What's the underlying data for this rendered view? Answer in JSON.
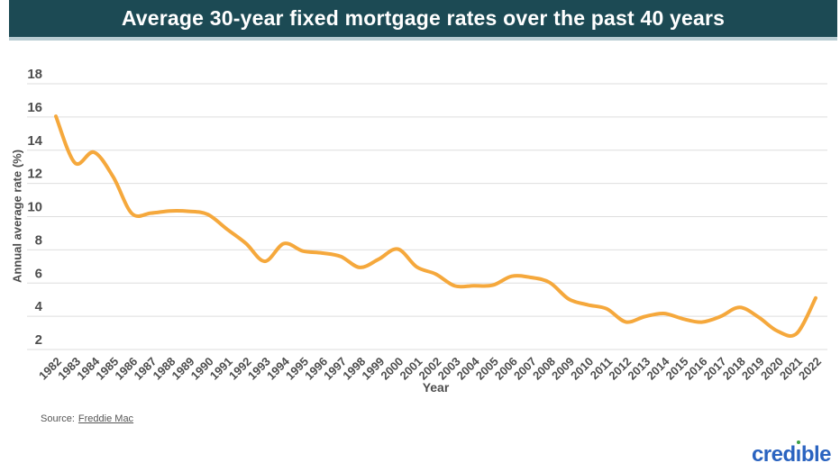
{
  "header": {
    "title": "Average 30-year fixed mortgage rates over the past 40 years"
  },
  "chart_data": {
    "type": "line",
    "title": "Average 30-year fixed mortgage rates over the past 40 years",
    "xlabel": "Year",
    "ylabel": "Annual average rate (%)",
    "x": [
      1982,
      1983,
      1984,
      1985,
      1986,
      1987,
      1988,
      1989,
      1990,
      1991,
      1992,
      1993,
      1994,
      1995,
      1996,
      1997,
      1998,
      1999,
      2000,
      2001,
      2002,
      2003,
      2004,
      2005,
      2006,
      2007,
      2008,
      2009,
      2010,
      2011,
      2012,
      2013,
      2014,
      2015,
      2016,
      2017,
      2018,
      2019,
      2020,
      2021,
      2022
    ],
    "values": [
      16.04,
      13.24,
      13.88,
      12.43,
      10.19,
      10.21,
      10.34,
      10.32,
      10.13,
      9.25,
      8.39,
      7.31,
      8.38,
      7.93,
      7.81,
      7.6,
      6.94,
      7.44,
      8.05,
      6.97,
      6.54,
      5.83,
      5.84,
      5.87,
      6.41,
      6.34,
      6.03,
      5.04,
      4.69,
      4.45,
      3.66,
      3.98,
      4.17,
      3.85,
      3.65,
      3.99,
      4.54,
      3.94,
      3.1,
      2.96,
      5.1
    ],
    "ylim": [
      2,
      18
    ],
    "yticks": [
      18,
      16,
      14,
      12,
      10,
      8,
      6,
      4,
      2
    ],
    "grid": true,
    "legend_position": "none",
    "line_color": "#F5A83C"
  },
  "footer": {
    "source_prefix": "Source:",
    "source_link_text": "Freddie Mac",
    "logo": {
      "part1": "cred",
      "i": "ı",
      "part2": "ble",
      "text_color": "#2A63C0",
      "dot_color": "#3FA047"
    }
  },
  "colors": {
    "header_bg": "#1C4A54",
    "header_underline": "#B8CCD2",
    "grid": "#DEDEDE",
    "tick_text": "#4D4D4D",
    "source_text": "#555555"
  }
}
